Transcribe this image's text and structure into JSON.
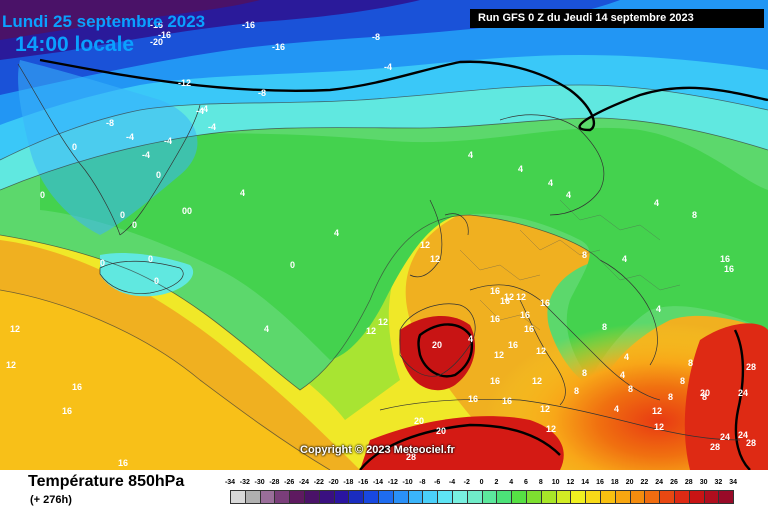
{
  "header": {
    "date": "Lundi 25 septembre 2023",
    "time": "14:00 locale",
    "run": "Run GFS 0 Z du Jeudi 14 septembre 2023"
  },
  "copyright": "Copyright © 2023 Meteociel.fr",
  "footer": {
    "title": "Température 850hPa",
    "lead": "(+ 276h)"
  },
  "legend": {
    "ticks": [
      "-34",
      "-32",
      "-30",
      "-28",
      "-26",
      "-24",
      "-22",
      "-20",
      "-18",
      "-16",
      "-14",
      "-12",
      "-10",
      "-8",
      "-6",
      "-4",
      "-2",
      "0",
      "2",
      "4",
      "6",
      "8",
      "10",
      "12",
      "14",
      "16",
      "18",
      "20",
      "22",
      "24",
      "26",
      "28",
      "30",
      "32",
      "34"
    ],
    "colors": [
      "#d8d8d8",
      "#b0b0b0",
      "#9a6e9a",
      "#7a3e7a",
      "#5e1a60",
      "#4a1268",
      "#3a1080",
      "#2a14a0",
      "#1a2cc0",
      "#1848e0",
      "#1e6cf0",
      "#2a90f8",
      "#3ab4fa",
      "#4ad0fa",
      "#5ee4f4",
      "#78f0e0",
      "#70ecc8",
      "#5ce89c",
      "#4ce278",
      "#56e044",
      "#7ee030",
      "#a8e628",
      "#d2ec24",
      "#f0f020",
      "#f8da18",
      "#f8c010",
      "#f8a610",
      "#f48c0e",
      "#f06c10",
      "#e84812",
      "#de2a14",
      "#c81414",
      "#b00e1e",
      "#980a28"
    ]
  },
  "map_labels": [
    "-16",
    "-16",
    "-20",
    "-16",
    "-8",
    "-16",
    "-4",
    "-12",
    "-8",
    "-4",
    "-8",
    "-4",
    "-4",
    "0",
    "-4",
    "-4",
    "-4",
    "0",
    "0",
    "0",
    "0",
    "4",
    "0",
    "00",
    "4",
    "0",
    "0",
    "4",
    "0",
    "4",
    "4",
    "4",
    "8",
    "8",
    "4",
    "4",
    "4",
    "4",
    "4",
    "4",
    "4",
    "8",
    "8",
    "8",
    "8",
    "4",
    "12",
    "12",
    "12",
    "12",
    "12",
    "12",
    "12",
    "16",
    "16",
    "16",
    "16",
    "16",
    "16",
    "16",
    "16",
    "16",
    "16",
    "16",
    "16",
    "16",
    "16",
    "20",
    "20",
    "20",
    "24",
    "24",
    "28",
    "28",
    "28",
    "12",
    "12",
    "8",
    "8",
    "8",
    "8",
    "12",
    "12",
    "12",
    "12",
    "12",
    "12",
    "24",
    "20",
    "28",
    "16"
  ]
}
